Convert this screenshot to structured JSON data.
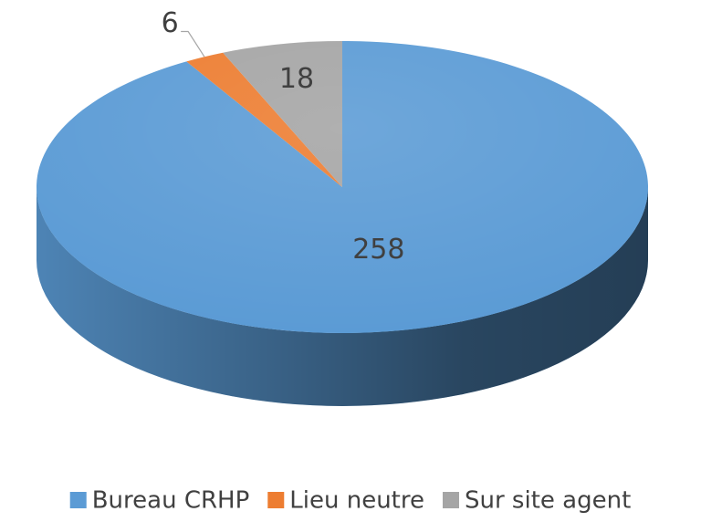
{
  "chart_data": {
    "type": "pie",
    "categories": [
      "Bureau CRHP",
      "Lieu neutre",
      "Sur site agent"
    ],
    "values": [
      258,
      6,
      18
    ],
    "colors": [
      "#5b9bd5",
      "#ed7d31",
      "#a5a5a5"
    ],
    "legend": "bottom"
  }
}
